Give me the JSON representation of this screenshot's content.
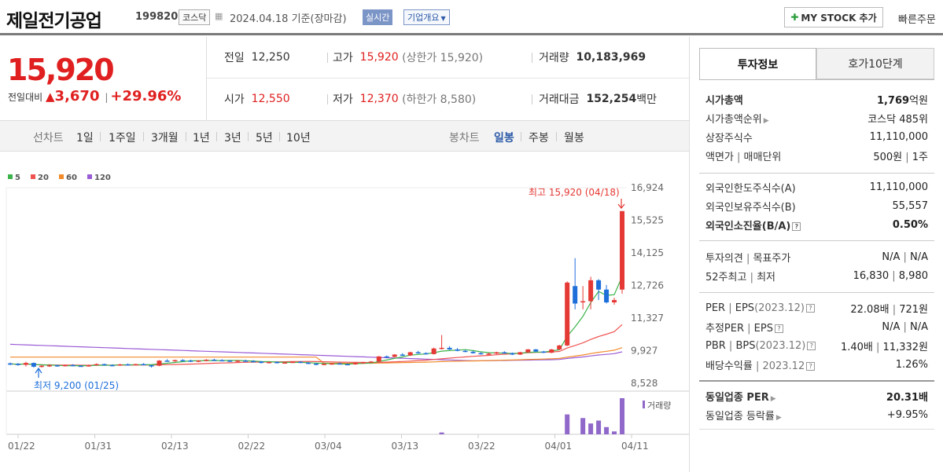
{
  "header": {
    "company": "제일전기공업",
    "code": "199820",
    "market": "코스닥",
    "date": "2024.04.18",
    "basis": "기준(장마감)",
    "realtime_label": "실시간",
    "corp_info_label": "기업개요",
    "mystock_label": "MY STOCK 추가",
    "quick_order_label": "빠른주문"
  },
  "price": {
    "current": "15,920",
    "change_label": "전일대비",
    "change": "3,670",
    "change_pct": "+29.96%"
  },
  "stats": {
    "prev_label": "전일",
    "prev": "12,250",
    "high_label": "고가",
    "high": "15,920",
    "upper_limit": "(상한가 15,920)",
    "volume_label": "거래량",
    "volume": "10,183,969",
    "open_label": "시가",
    "open": "12,550",
    "low_label": "저가",
    "low": "12,370",
    "lower_limit": "(하한가 8,580)",
    "amount_label": "거래대금",
    "amount": "152,254",
    "amount_unit": "백만"
  },
  "chart_tabs": {
    "line_label": "선차트",
    "line_items": [
      "1일",
      "1주일",
      "3개월",
      "1년",
      "3년",
      "5년",
      "10년"
    ],
    "candle_label": "봉차트",
    "candle_items": [
      "일봉",
      "주봉",
      "월봉"
    ],
    "active_candle": "일봉"
  },
  "chart_data": {
    "type": "candlestick",
    "legend": [
      {
        "name": "5",
        "color": "#3bb34a"
      },
      {
        "name": "20",
        "color": "#ef5350"
      },
      {
        "name": "60",
        "color": "#f28a2a"
      },
      {
        "name": "120",
        "color": "#9a5bd6"
      }
    ],
    "y_ticks": [
      "16,924",
      "15,525",
      "14,125",
      "12,726",
      "11,327",
      "9,927",
      "8,528"
    ],
    "x_ticks": [
      "01/22",
      "01/31",
      "02/13",
      "02/22",
      "03/04",
      "03/13",
      "03/22",
      "04/01",
      "04/11"
    ],
    "high_annotation": "최고 15,920 (04/18)",
    "low_annotation": "최저 9,200 (01/25)",
    "volume_label": "거래량",
    "ylim": [
      8528,
      16924
    ],
    "candles": [
      [
        9380,
        9420,
        9300,
        9360
      ],
      [
        9360,
        9400,
        9280,
        9320
      ],
      [
        9320,
        9450,
        9250,
        9400
      ],
      [
        9400,
        9420,
        9200,
        9240
      ],
      [
        9250,
        9300,
        9200,
        9280
      ],
      [
        9280,
        9350,
        9230,
        9300
      ],
      [
        9300,
        9330,
        9240,
        9270
      ],
      [
        9270,
        9330,
        9250,
        9310
      ],
      [
        9310,
        9350,
        9260,
        9280
      ],
      [
        9280,
        9300,
        9240,
        9260
      ],
      [
        9260,
        9330,
        9240,
        9300
      ],
      [
        9300,
        9380,
        9280,
        9350
      ],
      [
        9350,
        9370,
        9290,
        9310
      ],
      [
        9310,
        9340,
        9260,
        9290
      ],
      [
        9290,
        9360,
        9270,
        9340
      ],
      [
        9340,
        9380,
        9300,
        9320
      ],
      [
        9320,
        9360,
        9290,
        9350
      ],
      [
        9350,
        9390,
        9310,
        9330
      ],
      [
        9300,
        9320,
        9200,
        9280
      ],
      [
        9280,
        9520,
        9260,
        9500
      ],
      [
        9500,
        9560,
        9460,
        9480
      ],
      [
        9480,
        9540,
        9450,
        9520
      ],
      [
        9520,
        9560,
        9480,
        9500
      ],
      [
        9500,
        9540,
        9440,
        9460
      ],
      [
        9460,
        9520,
        9430,
        9500
      ],
      [
        9500,
        9560,
        9470,
        9540
      ],
      [
        9540,
        9580,
        9500,
        9520
      ],
      [
        9520,
        9560,
        9480,
        9500
      ],
      [
        9500,
        9530,
        9450,
        9470
      ],
      [
        9470,
        9520,
        9440,
        9500
      ],
      [
        9500,
        9540,
        9460,
        9480
      ],
      [
        9480,
        9520,
        9440,
        9460
      ],
      [
        9460,
        9480,
        9380,
        9400
      ],
      [
        9400,
        9460,
        9380,
        9440
      ],
      [
        9440,
        9470,
        9380,
        9400
      ],
      [
        9400,
        9440,
        9370,
        9420
      ],
      [
        9420,
        9470,
        9400,
        9450
      ],
      [
        9450,
        9480,
        9390,
        9410
      ],
      [
        9410,
        9440,
        9350,
        9370
      ],
      [
        9370,
        9400,
        9300,
        9320
      ],
      [
        9320,
        9380,
        9300,
        9360
      ],
      [
        9360,
        9400,
        9330,
        9380
      ],
      [
        9380,
        9420,
        9340,
        9350
      ],
      [
        9350,
        9380,
        9310,
        9340
      ],
      [
        9340,
        9420,
        9320,
        9400
      ],
      [
        9400,
        9450,
        9380,
        9430
      ],
      [
        9430,
        9480,
        9410,
        9460
      ],
      [
        9460,
        9700,
        9440,
        9680
      ],
      [
        9680,
        9720,
        9620,
        9660
      ],
      [
        9660,
        9780,
        9640,
        9760
      ],
      [
        9760,
        9820,
        9700,
        9720
      ],
      [
        9720,
        9880,
        9700,
        9860
      ],
      [
        9860,
        9920,
        9800,
        9820
      ],
      [
        9820,
        9860,
        9760,
        9780
      ],
      [
        9780,
        10060,
        9760,
        10020
      ],
      [
        10020,
        10600,
        9980,
        10050
      ],
      [
        10050,
        10120,
        9960,
        9980
      ],
      [
        9980,
        10040,
        9900,
        9920
      ],
      [
        9920,
        9960,
        9860,
        9880
      ],
      [
        9880,
        9920,
        9800,
        9820
      ],
      [
        9820,
        9860,
        9760,
        9790
      ],
      [
        9790,
        9840,
        9750,
        9800
      ],
      [
        9800,
        9880,
        9780,
        9860
      ],
      [
        9860,
        9900,
        9800,
        9820
      ],
      [
        9820,
        9850,
        9740,
        9760
      ],
      [
        9760,
        9880,
        9740,
        9860
      ],
      [
        9860,
        10000,
        9840,
        9980
      ],
      [
        9980,
        10000,
        9860,
        9890
      ],
      [
        9890,
        9920,
        9820,
        9840
      ],
      [
        9840,
        10000,
        9820,
        9980
      ],
      [
        9980,
        10180,
        9960,
        10150
      ],
      [
        10150,
        12900,
        10120,
        12850
      ],
      [
        12700,
        13900,
        11700,
        11950
      ],
      [
        12000,
        12700,
        11700,
        12050
      ],
      [
        12050,
        13100,
        11700,
        12950
      ],
      [
        12950,
        13000,
        12100,
        12550
      ],
      [
        12550,
        12750,
        11950,
        12000
      ],
      [
        12000,
        12200,
        11900,
        12100
      ],
      [
        12550,
        15920,
        12370,
        15920
      ]
    ],
    "volumes": [
      0,
      0,
      0,
      0,
      0,
      0,
      0,
      0,
      0,
      0,
      0,
      0,
      0,
      0,
      0,
      0,
      0,
      0,
      0,
      0,
      0,
      0,
      0,
      0,
      0,
      0,
      0,
      0,
      0,
      0,
      0,
      0,
      0,
      0,
      0,
      0,
      0,
      0,
      0,
      0,
      0,
      0,
      0,
      0,
      0,
      0,
      0,
      0,
      0,
      0,
      0,
      0,
      0,
      0,
      0,
      0.05,
      0,
      0,
      0,
      0,
      0,
      0,
      0,
      0,
      0,
      0,
      0,
      0,
      0,
      0,
      0,
      0.55,
      0,
      0.45,
      0.3,
      0.38,
      0.2,
      0.08,
      1.0
    ]
  },
  "invest_tabs": {
    "active": "투자정보",
    "inactive": "호가10단계"
  },
  "info": {
    "mcap_label": "시가총액",
    "mcap": "1,769",
    "mcap_unit": "억원",
    "mcap_rank_label": "시가총액순위",
    "mcap_rank": "코스닥 485위",
    "shares_label": "상장주식수",
    "shares": "11,110,000",
    "par_label": "액면가",
    "trade_unit_label": "매매단위",
    "par": "500원",
    "trade_unit": "1주",
    "foreign_limit_label": "외국인한도주식수(A)",
    "foreign_limit": "11,110,000",
    "foreign_hold_label": "외국인보유주식수(B)",
    "foreign_hold": "55,557",
    "foreign_ratio_label": "외국인소진율(B/A)",
    "foreign_ratio": "0.50%",
    "opinion_label": "투자의견",
    "target_label": "목표주가",
    "opinion": "N/A",
    "target": "N/A",
    "w52_label": "52주최고",
    "w52_low_label": "최저",
    "w52_high": "16,830",
    "w52_low": "8,980",
    "per_label": "PER",
    "eps_label": "EPS",
    "eps_year": "(2023.12)",
    "per": "22.08배",
    "eps": "721원",
    "est_per_label": "추정PER",
    "est_eps_label": "EPS",
    "est_per": "N/A",
    "est_eps": "N/A",
    "pbr_label": "PBR",
    "bps_label": "BPS",
    "bps_year": "(2023.12)",
    "pbr": "1.40배",
    "bps": "11,332원",
    "div_label": "배당수익률",
    "div_year": "2023.12",
    "div": "1.26%",
    "ind_per_label": "동일업종 PER",
    "ind_per": "20.31배",
    "ind_chg_label": "동일업종 등락률",
    "ind_chg": "+9.95%"
  }
}
